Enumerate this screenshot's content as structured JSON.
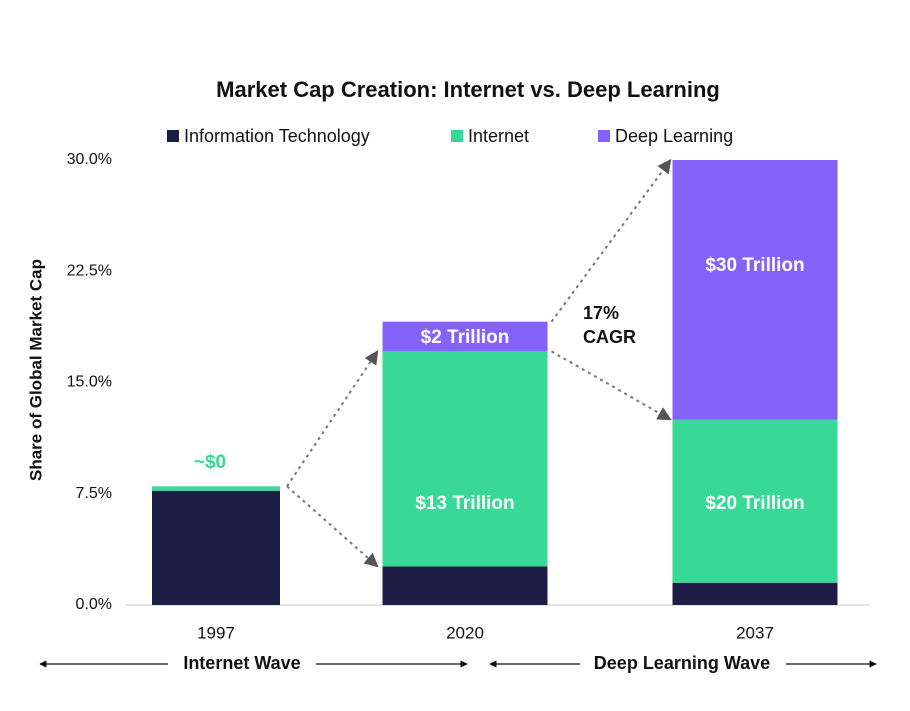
{
  "chart_data": {
    "type": "stacked-bar",
    "title": "Market Cap Creation: Internet vs. Deep Learning",
    "y_label": "Share of Global Market Cap",
    "categories": [
      "1997",
      "2020",
      "2037"
    ],
    "series": [
      {
        "name": "Information Technology",
        "color": "#1f1d45",
        "values": [
          7.7,
          2.6,
          1.5
        ]
      },
      {
        "name": "Internet",
        "color": "#38d996",
        "values": [
          0.3,
          14.5,
          11.0
        ]
      },
      {
        "name": "Deep Learning",
        "color": "#8463fa",
        "values": [
          null,
          2.0,
          17.5
        ]
      }
    ],
    "ylim": [
      0,
      30
    ],
    "yticks": [
      {
        "value": 0,
        "label": "0.0%"
      },
      {
        "value": 7.5,
        "label": "7.5%"
      },
      {
        "value": 15,
        "label": "15.0%"
      },
      {
        "value": 22.5,
        "label": "22.5%"
      },
      {
        "value": 30,
        "label": "30.0%"
      }
    ],
    "annotations": [
      "~$0",
      "$2 Trillion",
      "$13 Trillion",
      "$20 Trillion",
      "$30 Trillion",
      "17%",
      "CAGR",
      "Internet Wave",
      "Deep Learning Wave"
    ]
  }
}
